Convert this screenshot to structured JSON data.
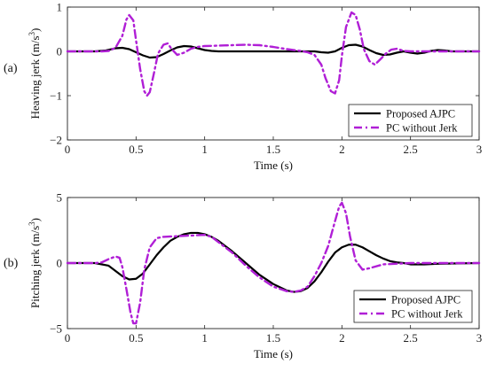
{
  "chart_data": [
    {
      "type": "line",
      "panel_label": "(a)",
      "xlabel": "Time (s)",
      "ylabel": "Heaving jerk (m/s",
      "ylabel_sup": "3",
      "ylabel_end": ")",
      "xlim": [
        0,
        3
      ],
      "ylim": [
        -2,
        1
      ],
      "xticks": [
        0,
        0.5,
        1,
        1.5,
        2,
        2.5,
        3
      ],
      "xtick_labels": [
        "0",
        "0.5",
        "1",
        "1.5",
        "2",
        "2.5",
        "3"
      ],
      "yticks": [
        1,
        0,
        -1,
        -2
      ],
      "ytick_labels": [
        "1",
        "0",
        "−1",
        "−2"
      ],
      "grid": false,
      "legend_position": "bottom-right",
      "series": [
        {
          "name": "Proposed AJPC",
          "color": "#000000",
          "style": "solid",
          "x": [
            0,
            0.2,
            0.28,
            0.35,
            0.4,
            0.45,
            0.5,
            0.55,
            0.6,
            0.65,
            0.7,
            0.75,
            0.8,
            0.85,
            0.9,
            0.95,
            1.0,
            1.05,
            1.1,
            1.2,
            1.4,
            1.6,
            1.8,
            1.85,
            1.9,
            1.95,
            2.0,
            2.05,
            2.1,
            2.15,
            2.2,
            2.25,
            2.3,
            2.35,
            2.4,
            2.45,
            2.5,
            2.55,
            2.6,
            2.65,
            2.7,
            2.75,
            2.8,
            2.9,
            3.0
          ],
          "y": [
            0,
            0,
            0.02,
            0.07,
            0.08,
            0.05,
            -0.02,
            -0.09,
            -0.14,
            -0.13,
            -0.06,
            0.02,
            0.09,
            0.12,
            0.11,
            0.07,
            0.03,
            0.01,
            0.0,
            0.0,
            0.0,
            0.0,
            0.0,
            -0.02,
            -0.03,
            0.0,
            0.08,
            0.14,
            0.15,
            0.11,
            0.03,
            -0.04,
            -0.08,
            -0.07,
            -0.03,
            0.0,
            -0.03,
            -0.05,
            -0.03,
            0.01,
            0.03,
            0.02,
            0.0,
            0.0,
            0.0
          ]
        },
        {
          "name": "PC without Jerk",
          "color": "#b01fd6",
          "style": "dashdot",
          "x": [
            0,
            0.25,
            0.3,
            0.35,
            0.4,
            0.43,
            0.45,
            0.48,
            0.5,
            0.53,
            0.56,
            0.58,
            0.6,
            0.63,
            0.66,
            0.7,
            0.73,
            0.76,
            0.8,
            0.85,
            0.9,
            0.95,
            1.0,
            1.1,
            1.2,
            1.3,
            1.4,
            1.5,
            1.6,
            1.7,
            1.75,
            1.8,
            1.85,
            1.88,
            1.92,
            1.95,
            1.98,
            2.0,
            2.03,
            2.07,
            2.1,
            2.13,
            2.16,
            2.2,
            2.24,
            2.28,
            2.32,
            2.36,
            2.4,
            2.45,
            2.5,
            2.6,
            2.7,
            2.8,
            3.0
          ],
          "y": [
            0,
            0,
            0.01,
            0.08,
            0.35,
            0.72,
            0.82,
            0.7,
            0.25,
            -0.4,
            -0.9,
            -1.0,
            -0.92,
            -0.5,
            -0.05,
            0.15,
            0.18,
            0.05,
            -0.08,
            -0.03,
            0.06,
            0.1,
            0.12,
            0.13,
            0.14,
            0.15,
            0.14,
            0.1,
            0.05,
            0.01,
            -0.02,
            -0.08,
            -0.3,
            -0.6,
            -0.9,
            -0.95,
            -0.65,
            -0.1,
            0.55,
            0.88,
            0.82,
            0.5,
            0.05,
            -0.22,
            -0.3,
            -0.18,
            -0.05,
            0.04,
            0.06,
            0.01,
            0.0,
            0.0,
            0.0,
            0.0,
            0.0
          ]
        }
      ]
    },
    {
      "type": "line",
      "panel_label": "(b)",
      "xlabel": "Time (s)",
      "ylabel": "Pitching jerk (m/s",
      "ylabel_sup": "3",
      "ylabel_end": ")",
      "xlim": [
        0,
        3
      ],
      "ylim": [
        -5,
        5
      ],
      "xticks": [
        0,
        0.5,
        1,
        1.5,
        2,
        2.5,
        3
      ],
      "xtick_labels": [
        "0",
        "0.5",
        "1",
        "1.5",
        "2",
        "2.5",
        "3"
      ],
      "yticks": [
        5,
        0,
        -5
      ],
      "ytick_labels": [
        "5",
        "0",
        "−5"
      ],
      "grid": false,
      "legend_position": "bottom-right",
      "series": [
        {
          "name": "Proposed AJPC",
          "color": "#000000",
          "style": "solid",
          "x": [
            0,
            0.2,
            0.3,
            0.35,
            0.4,
            0.45,
            0.5,
            0.55,
            0.6,
            0.65,
            0.7,
            0.75,
            0.8,
            0.85,
            0.9,
            0.95,
            1.0,
            1.05,
            1.1,
            1.2,
            1.3,
            1.4,
            1.5,
            1.6,
            1.65,
            1.7,
            1.75,
            1.8,
            1.85,
            1.9,
            1.95,
            2.0,
            2.05,
            2.1,
            2.15,
            2.2,
            2.25,
            2.3,
            2.35,
            2.4,
            2.45,
            2.5,
            2.6,
            2.7,
            3.0
          ],
          "y": [
            0,
            0,
            -0.2,
            -0.6,
            -1.0,
            -1.25,
            -1.2,
            -0.8,
            -0.1,
            0.6,
            1.2,
            1.7,
            2.0,
            2.2,
            2.3,
            2.3,
            2.2,
            2.0,
            1.7,
            0.9,
            0.0,
            -0.9,
            -1.6,
            -2.1,
            -2.2,
            -2.15,
            -1.9,
            -1.4,
            -0.7,
            0.1,
            0.8,
            1.2,
            1.4,
            1.4,
            1.2,
            0.9,
            0.6,
            0.35,
            0.15,
            0.05,
            0.0,
            -0.1,
            -0.1,
            -0.05,
            0.0
          ]
        },
        {
          "name": "PC without Jerk",
          "color": "#b01fd6",
          "style": "dashdot",
          "x": [
            0,
            0.2,
            0.25,
            0.3,
            0.35,
            0.38,
            0.4,
            0.43,
            0.46,
            0.48,
            0.5,
            0.53,
            0.56,
            0.6,
            0.65,
            0.7,
            0.8,
            0.9,
            1.0,
            1.05,
            1.1,
            1.2,
            1.3,
            1.4,
            1.5,
            1.6,
            1.65,
            1.7,
            1.75,
            1.8,
            1.85,
            1.9,
            1.95,
            1.98,
            2.0,
            2.03,
            2.06,
            2.1,
            2.15,
            2.2,
            2.3,
            2.5,
            2.7,
            3.0
          ],
          "y": [
            0,
            0,
            0.05,
            0.3,
            0.5,
            0.4,
            -0.3,
            -2.0,
            -3.8,
            -4.6,
            -4.6,
            -3.0,
            -0.5,
            1.2,
            1.9,
            2.0,
            2.05,
            2.1,
            2.15,
            2.0,
            1.6,
            0.8,
            -0.2,
            -1.1,
            -1.8,
            -2.15,
            -2.2,
            -2.1,
            -1.8,
            -1.0,
            0.0,
            1.3,
            3.2,
            4.3,
            4.6,
            3.8,
            2.0,
            0.2,
            -0.5,
            -0.4,
            -0.1,
            0.0,
            0.0,
            0.0
          ]
        }
      ]
    }
  ]
}
